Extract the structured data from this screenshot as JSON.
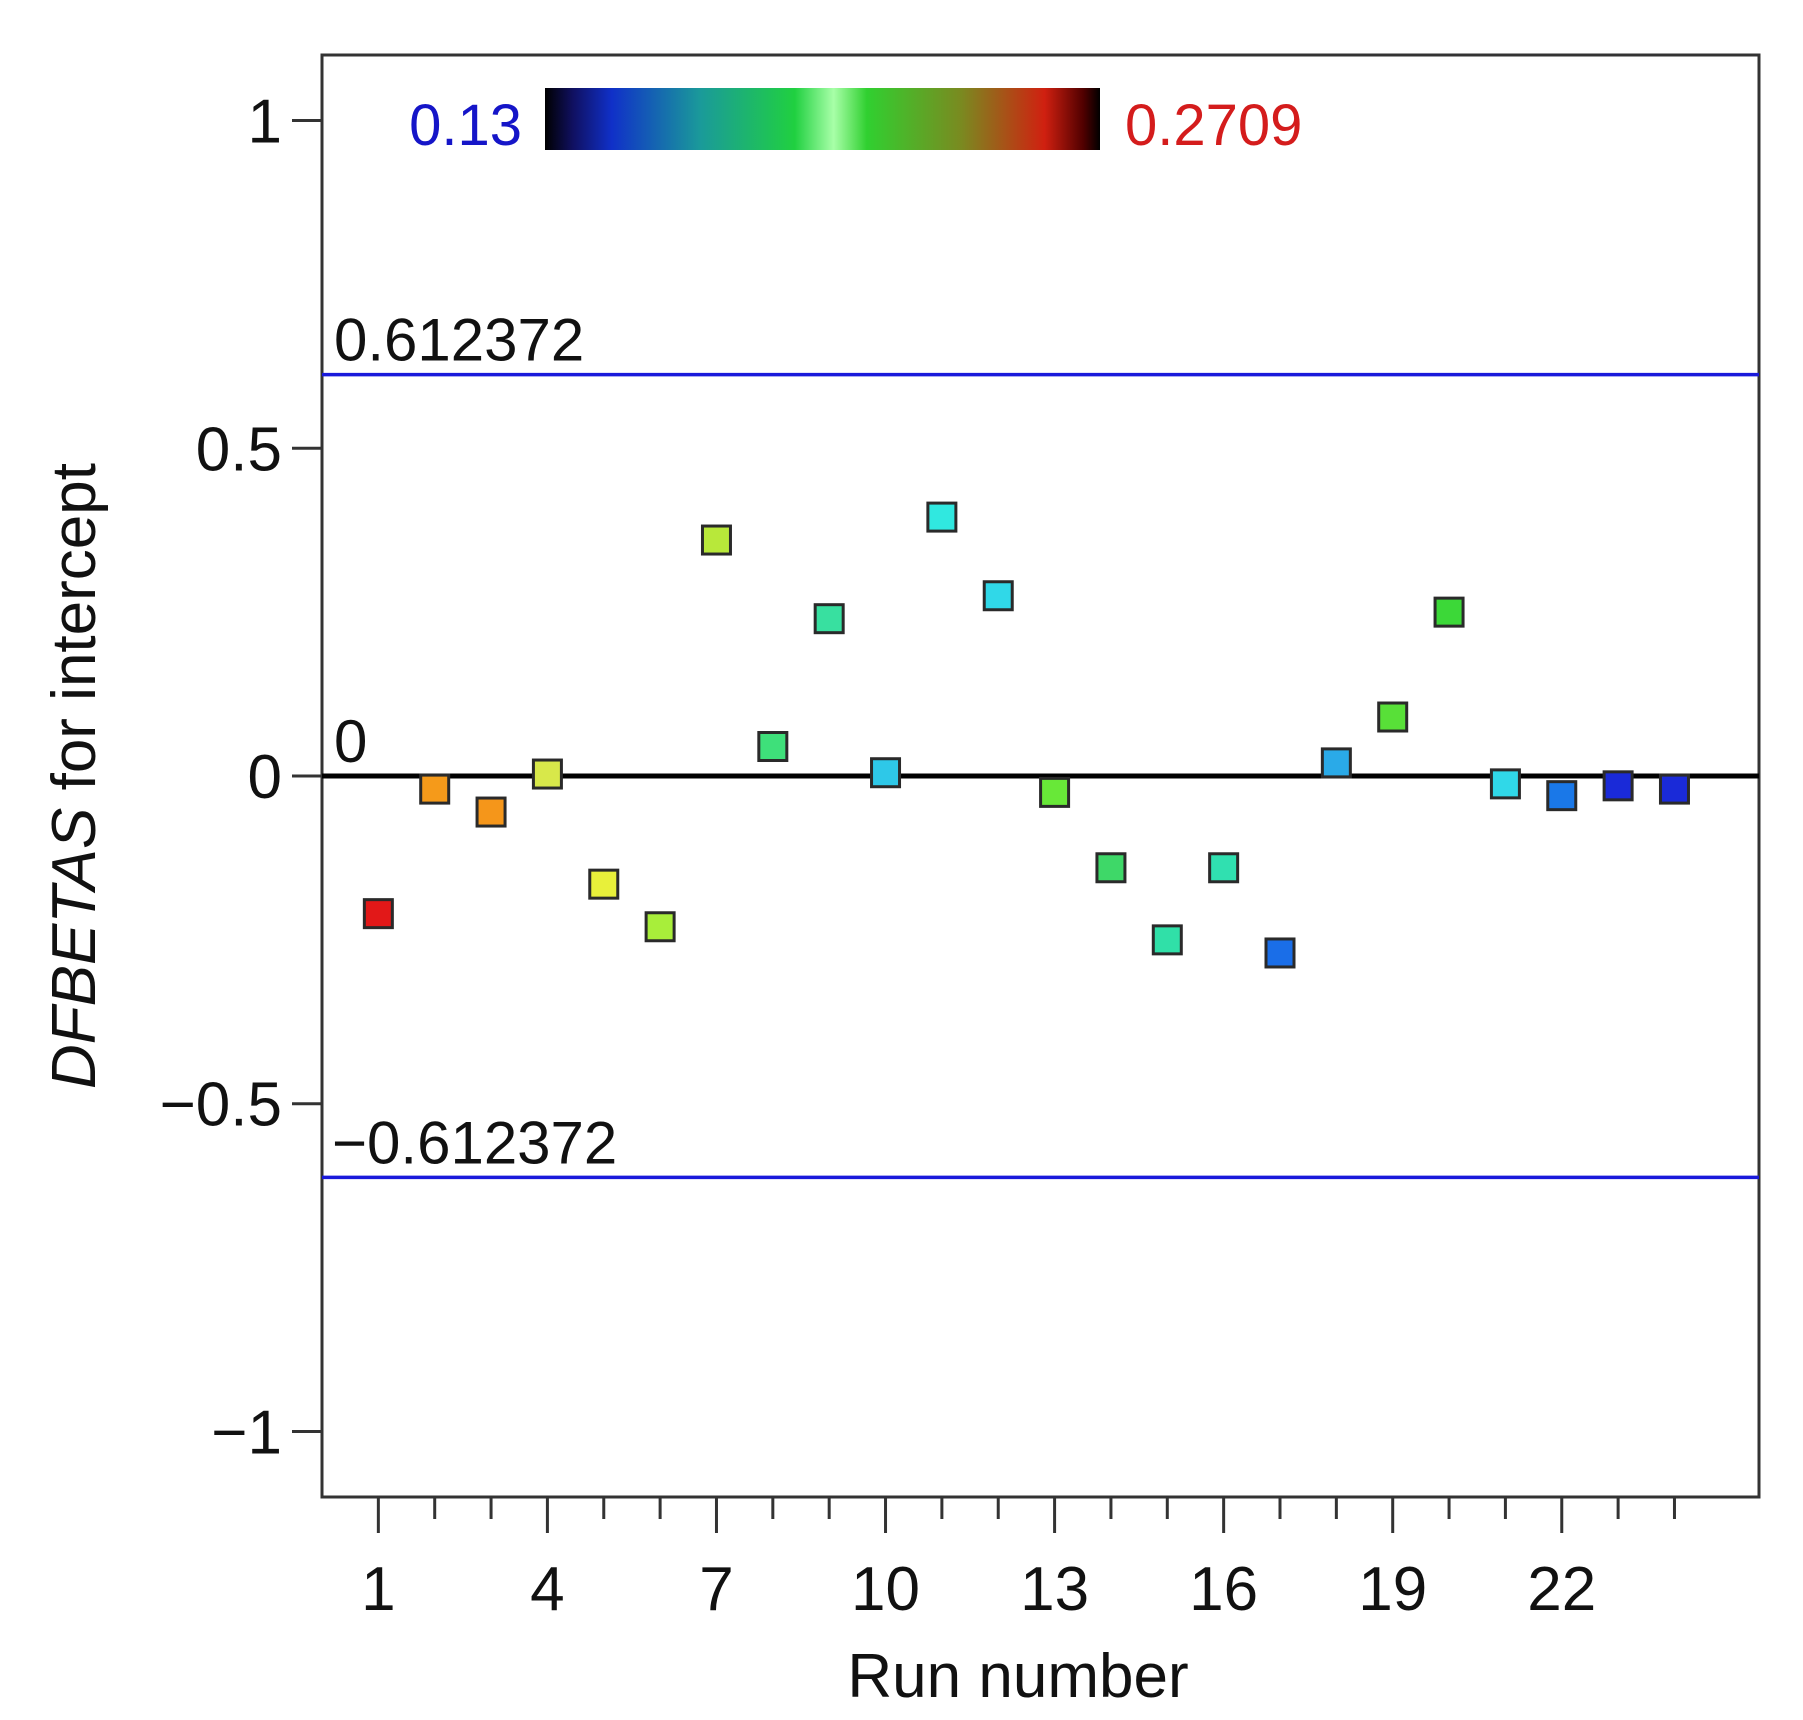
{
  "chart_data": {
    "type": "scatter",
    "xlabel": "Run number",
    "ylabel_italic": "DFBETAS",
    "ylabel_rest": " for intercept",
    "xlim": [
      0,
      25.5
    ],
    "ylim": [
      -1.1,
      1.1
    ],
    "x_ticks": [
      1,
      4,
      7,
      10,
      13,
      16,
      19,
      22
    ],
    "x_minor_ticks": [
      1,
      2,
      3,
      4,
      5,
      6,
      7,
      8,
      9,
      10,
      11,
      12,
      13,
      14,
      15,
      16,
      17,
      18,
      19,
      20,
      21,
      22,
      23,
      24
    ],
    "y_ticks": [
      {
        "value": 1,
        "label": "1"
      },
      {
        "value": 0.5,
        "label": "0.5"
      },
      {
        "value": 0,
        "label": "0"
      },
      {
        "value": -0.5,
        "label": "−0.5"
      },
      {
        "value": -1,
        "label": "−1"
      }
    ],
    "reference_lines": [
      {
        "value": 0.612372,
        "label": "0.612372",
        "color": "#1a1adb"
      },
      {
        "value": 0,
        "label": "0",
        "color": "#000000"
      },
      {
        "value": -0.612372,
        "label": "−0.612372",
        "color": "#1a1adb"
      }
    ],
    "colorbar": {
      "min_label": "0.13",
      "max_label": "0.2709",
      "min": 0.13,
      "max": 0.2709,
      "min_color": "#1515c8",
      "max_color": "#d41c1c"
    },
    "points": [
      {
        "x": 1,
        "y": -0.21,
        "color": "#e21818"
      },
      {
        "x": 2,
        "y": -0.02,
        "color": "#f59a1a"
      },
      {
        "x": 3,
        "y": -0.055,
        "color": "#f5961a"
      },
      {
        "x": 4,
        "y": 0.003,
        "color": "#d8e84a"
      },
      {
        "x": 5,
        "y": -0.165,
        "color": "#e8f03a"
      },
      {
        "x": 6,
        "y": -0.23,
        "color": "#a8ee3a"
      },
      {
        "x": 7,
        "y": 0.36,
        "color": "#b8e83a"
      },
      {
        "x": 8,
        "y": 0.045,
        "color": "#3ee07a"
      },
      {
        "x": 9,
        "y": 0.24,
        "color": "#38e0a0"
      },
      {
        "x": 10,
        "y": 0.005,
        "color": "#2ec8e8"
      },
      {
        "x": 11,
        "y": 0.395,
        "color": "#30e8e0"
      },
      {
        "x": 12,
        "y": 0.275,
        "color": "#30d8e8"
      },
      {
        "x": 13,
        "y": -0.025,
        "color": "#68e838"
      },
      {
        "x": 14,
        "y": -0.14,
        "color": "#3ed868"
      },
      {
        "x": 15,
        "y": -0.25,
        "color": "#30e0a8"
      },
      {
        "x": 16,
        "y": -0.14,
        "color": "#30e0b0"
      },
      {
        "x": 17,
        "y": -0.27,
        "color": "#1a6ee8"
      },
      {
        "x": 18,
        "y": 0.02,
        "color": "#2aaae8"
      },
      {
        "x": 19,
        "y": 0.09,
        "color": "#58e038"
      },
      {
        "x": 20,
        "y": 0.25,
        "color": "#3cd838"
      },
      {
        "x": 21,
        "y": -0.012,
        "color": "#30d8e8"
      },
      {
        "x": 22,
        "y": -0.03,
        "color": "#1a78e8"
      },
      {
        "x": 23,
        "y": -0.015,
        "color": "#1a2ad8"
      },
      {
        "x": 24,
        "y": -0.02,
        "color": "#1a2ad8"
      }
    ]
  }
}
